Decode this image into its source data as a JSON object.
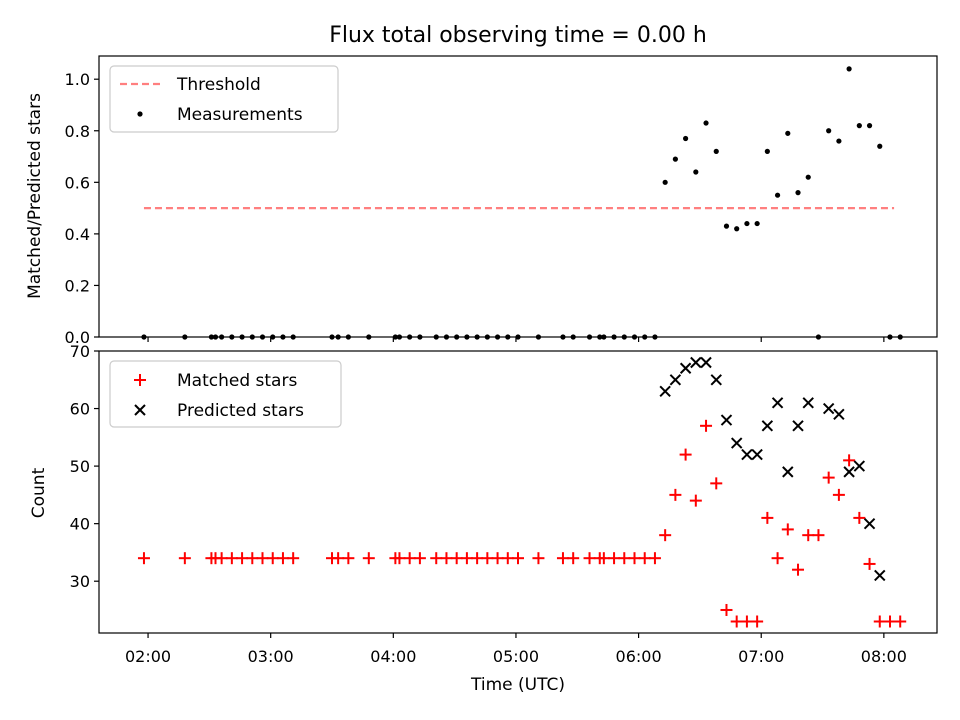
{
  "chart_data": [
    {
      "type": "scatter",
      "title": "Flux total observing time = 0.00 h",
      "xlabel": "",
      "ylabel": "Matched/Predicted stars",
      "ylim": [
        0.0,
        1.09
      ],
      "yticks": [
        0.0,
        0.2,
        0.4,
        0.6,
        0.8,
        1.0
      ],
      "ytick_labels": [
        "0.0",
        "0.2",
        "0.4",
        "0.6",
        "0.8",
        "1.0"
      ],
      "legend_position": "top-left",
      "series": [
        {
          "name": "Threshold",
          "kind": "dashed-line",
          "color": "#ff7f7f",
          "x": [
            "01:58",
            "08:05"
          ],
          "y": [
            0.5,
            0.5
          ]
        },
        {
          "name": "Measurements",
          "kind": "dots",
          "color": "#000000",
          "x": [
            "01:58",
            "02:18",
            "02:31",
            "02:33",
            "02:36",
            "02:41",
            "02:46",
            "02:51",
            "02:56",
            "03:01",
            "03:06",
            "03:11",
            "03:30",
            "03:33",
            "03:38",
            "03:48",
            "04:01",
            "04:03",
            "04:08",
            "04:13",
            "04:21",
            "04:26",
            "04:31",
            "04:36",
            "04:41",
            "04:46",
            "04:51",
            "04:56",
            "05:01",
            "05:11",
            "05:23",
            "05:28",
            "05:36",
            "05:41",
            "05:43",
            "05:48",
            "05:53",
            "05:58",
            "06:03",
            "06:08",
            "06:13",
            "06:18",
            "06:23",
            "06:28",
            "06:33",
            "06:38",
            "06:43",
            "06:48",
            "06:53",
            "06:58",
            "07:03",
            "07:08",
            "07:13",
            "07:18",
            "07:23",
            "07:28",
            "07:33",
            "07:38",
            "07:43",
            "07:48",
            "07:53",
            "07:58",
            "08:03",
            "08:08"
          ],
          "y": [
            0.0,
            0.0,
            0.0,
            0.0,
            0.0,
            0.0,
            0.0,
            0.0,
            0.0,
            0.0,
            0.0,
            0.0,
            0.0,
            0.0,
            0.0,
            0.0,
            0.0,
            0.0,
            0.0,
            0.0,
            0.0,
            0.0,
            0.0,
            0.0,
            0.0,
            0.0,
            0.0,
            0.0,
            0.0,
            0.0,
            0.0,
            0.0,
            0.0,
            0.0,
            0.0,
            0.0,
            0.0,
            0.0,
            0.0,
            0.0,
            0.6,
            0.69,
            0.77,
            0.64,
            0.83,
            0.72,
            0.43,
            0.42,
            0.44,
            0.44,
            0.72,
            0.55,
            0.79,
            0.56,
            0.62,
            0.0,
            0.8,
            0.76,
            1.04,
            0.82,
            0.82,
            0.74,
            0.0,
            0.0
          ]
        }
      ]
    },
    {
      "type": "scatter",
      "title": "",
      "xlabel": "Time (UTC)",
      "ylabel": "Count",
      "ylim": [
        21,
        70
      ],
      "yticks": [
        30,
        40,
        50,
        60,
        70
      ],
      "ytick_labels": [
        "30",
        "40",
        "50",
        "60",
        "70"
      ],
      "xticks": [
        "02:00",
        "03:00",
        "04:00",
        "05:00",
        "06:00",
        "07:00",
        "08:00"
      ],
      "xlim": [
        "01:36",
        "08:26"
      ],
      "legend_position": "top-left",
      "series": [
        {
          "name": "Matched stars",
          "kind": "plus",
          "color": "#ff0000",
          "x": [
            "01:58",
            "02:18",
            "02:31",
            "02:33",
            "02:36",
            "02:41",
            "02:46",
            "02:51",
            "02:56",
            "03:01",
            "03:06",
            "03:11",
            "03:30",
            "03:33",
            "03:38",
            "03:48",
            "04:01",
            "04:03",
            "04:08",
            "04:13",
            "04:21",
            "04:26",
            "04:31",
            "04:36",
            "04:41",
            "04:46",
            "04:51",
            "04:56",
            "05:01",
            "05:11",
            "05:23",
            "05:28",
            "05:36",
            "05:41",
            "05:43",
            "05:48",
            "05:53",
            "05:58",
            "06:03",
            "06:08",
            "06:13",
            "06:18",
            "06:23",
            "06:28",
            "06:33",
            "06:38",
            "06:43",
            "06:48",
            "06:53",
            "06:58",
            "07:03",
            "07:08",
            "07:13",
            "07:18",
            "07:23",
            "07:28",
            "07:33",
            "07:38",
            "07:43",
            "07:48",
            "07:53",
            "07:58",
            "08:03",
            "08:08"
          ],
          "y": [
            34,
            34,
            34,
            34,
            34,
            34,
            34,
            34,
            34,
            34,
            34,
            34,
            34,
            34,
            34,
            34,
            34,
            34,
            34,
            34,
            34,
            34,
            34,
            34,
            34,
            34,
            34,
            34,
            34,
            34,
            34,
            34,
            34,
            34,
            34,
            34,
            34,
            34,
            34,
            34,
            38,
            45,
            52,
            44,
            57,
            47,
            25,
            23,
            23,
            23,
            41,
            34,
            39,
            32,
            38,
            38,
            48,
            45,
            51,
            41,
            33,
            23,
            23,
            23
          ]
        },
        {
          "name": "Predicted stars",
          "kind": "x",
          "color": "#000000",
          "x": [
            "06:13",
            "06:18",
            "06:23",
            "06:28",
            "06:33",
            "06:38",
            "06:43",
            "06:48",
            "06:53",
            "06:58",
            "07:03",
            "07:08",
            "07:13",
            "07:18",
            "07:23",
            "07:33",
            "07:38",
            "07:43",
            "07:48",
            "07:53",
            "07:58"
          ],
          "y": [
            63,
            65,
            67,
            68,
            68,
            65,
            58,
            54,
            52,
            52,
            57,
            61,
            49,
            57,
            61,
            60,
            59,
            49,
            50,
            40,
            31
          ]
        }
      ]
    }
  ]
}
